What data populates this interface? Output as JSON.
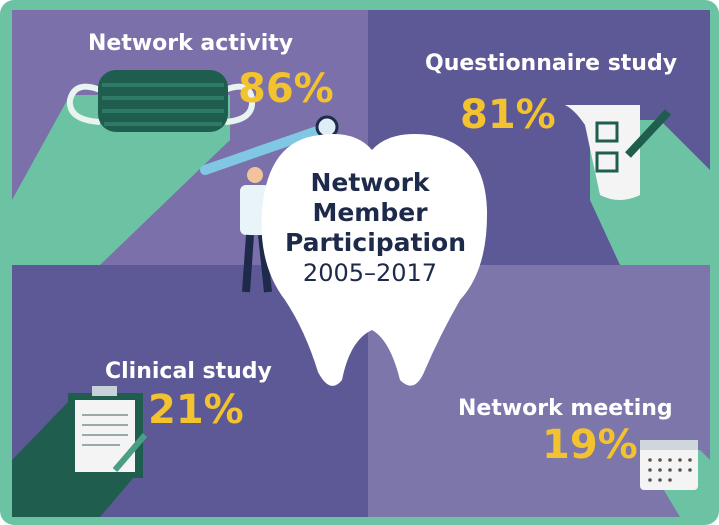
{
  "title": "Network Member Participation",
  "subtitle": "2005–2017",
  "items": [
    {
      "label": "Network activity",
      "value": "86%"
    },
    {
      "label": "Questionnaire study",
      "value": "81%"
    },
    {
      "label": "Clinical study",
      "value": "21%"
    },
    {
      "label": "Network meeting",
      "value": "19%"
    }
  ]
}
